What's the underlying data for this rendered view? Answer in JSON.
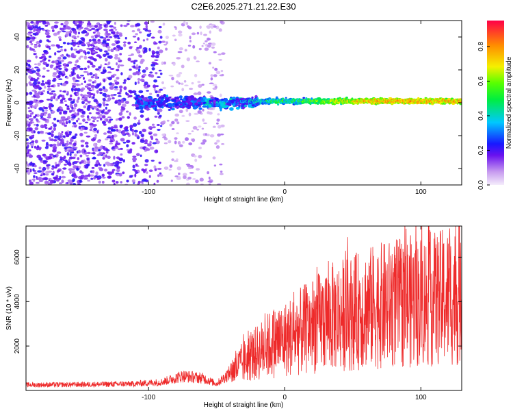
{
  "title": "C2E6.2025.271.21.22.E30",
  "chart_data": [
    {
      "type": "heatmap",
      "name": "spectrogram",
      "xlabel": "Height of straight line (km)",
      "ylabel": "Frequency (Hz)",
      "xlim": [
        -190,
        130
      ],
      "ylim": [
        -50,
        50
      ],
      "x_ticks": [
        -100,
        0,
        100
      ],
      "y_ticks": [
        -40,
        -20,
        0,
        20,
        40
      ],
      "colorbar": {
        "label": "Normalized spectral amplitude",
        "range": [
          0.0,
          0.95
        ],
        "ticks": [
          0.0,
          0.2,
          0.4,
          0.6,
          0.8
        ],
        "tick_labels": [
          "0.0",
          "0.2",
          "0.4",
          "0.6",
          "0.8"
        ]
      },
      "description_of_signal": {
        "noise_region_km": [
          -190,
          -50
        ],
        "signal_band_center_hz": 0,
        "signal_band_halfwidth_hz": 4,
        "signal_onset_km": -110
      }
    },
    {
      "type": "line",
      "name": "snr",
      "xlabel": "Height of straight line (km)",
      "ylabel": "SNR (10 * v/v)",
      "xlim": [
        -190,
        130
      ],
      "ylim": [
        0,
        7400
      ],
      "x_ticks": [
        -100,
        0,
        100
      ],
      "y_ticks": [
        2000,
        4000,
        6000
      ],
      "color": "#ee2a2a",
      "series": [
        {
          "name": "SNR",
          "x": [
            -190,
            -160,
            -130,
            -110,
            -90,
            -75,
            -60,
            -50,
            -40,
            -30,
            -20,
            -10,
            0,
            10,
            20,
            30,
            40,
            50,
            60,
            70,
            80,
            90,
            100,
            110,
            120,
            130
          ],
          "y": [
            250,
            260,
            280,
            300,
            380,
            650,
            550,
            300,
            800,
            1300,
            1700,
            2100,
            2300,
            2600,
            2900,
            3200,
            3400,
            3500,
            3700,
            3800,
            3900,
            4000,
            4050,
            4100,
            4200,
            4300
          ]
        }
      ]
    }
  ]
}
